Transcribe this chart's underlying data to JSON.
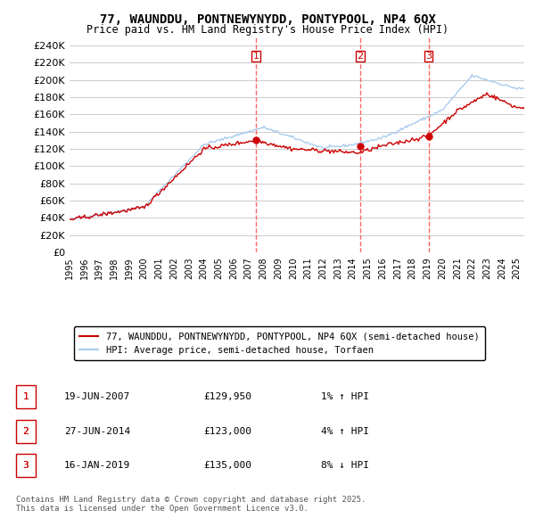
{
  "title": "77, WAUNDDU, PONTNEWYNYDD, PONTYPOOL, NP4 6QX",
  "subtitle": "Price paid vs. HM Land Registry's House Price Index (HPI)",
  "ylim": [
    0,
    250000
  ],
  "yticks": [
    0,
    20000,
    40000,
    60000,
    80000,
    100000,
    120000,
    140000,
    160000,
    180000,
    200000,
    220000,
    240000
  ],
  "ytick_labels": [
    "£0",
    "£20K",
    "£40K",
    "£60K",
    "£80K",
    "£100K",
    "£120K",
    "£140K",
    "£160K",
    "£180K",
    "£200K",
    "£220K",
    "£240K"
  ],
  "legend_label_red": "77, WAUNDDU, PONTNEWYNYDD, PONTYPOOL, NP4 6QX (semi-detached house)",
  "legend_label_blue": "HPI: Average price, semi-detached house, Torfaen",
  "sale_1_date": "19-JUN-2007",
  "sale_1_price": "£129,950",
  "sale_1_hpi": "1% ↑ HPI",
  "sale_2_date": "27-JUN-2014",
  "sale_2_price": "£123,000",
  "sale_2_hpi": "4% ↑ HPI",
  "sale_3_date": "16-JAN-2019",
  "sale_3_price": "£135,000",
  "sale_3_hpi": "8% ↓ HPI",
  "footer": "Contains HM Land Registry data © Crown copyright and database right 2025.\nThis data is licensed under the Open Government Licence v3.0.",
  "red_color": "#cc0000",
  "blue_color": "#aaccee",
  "vline_color": "#ff6666",
  "grid_color": "#cccccc",
  "bg_color": "#ffffff"
}
